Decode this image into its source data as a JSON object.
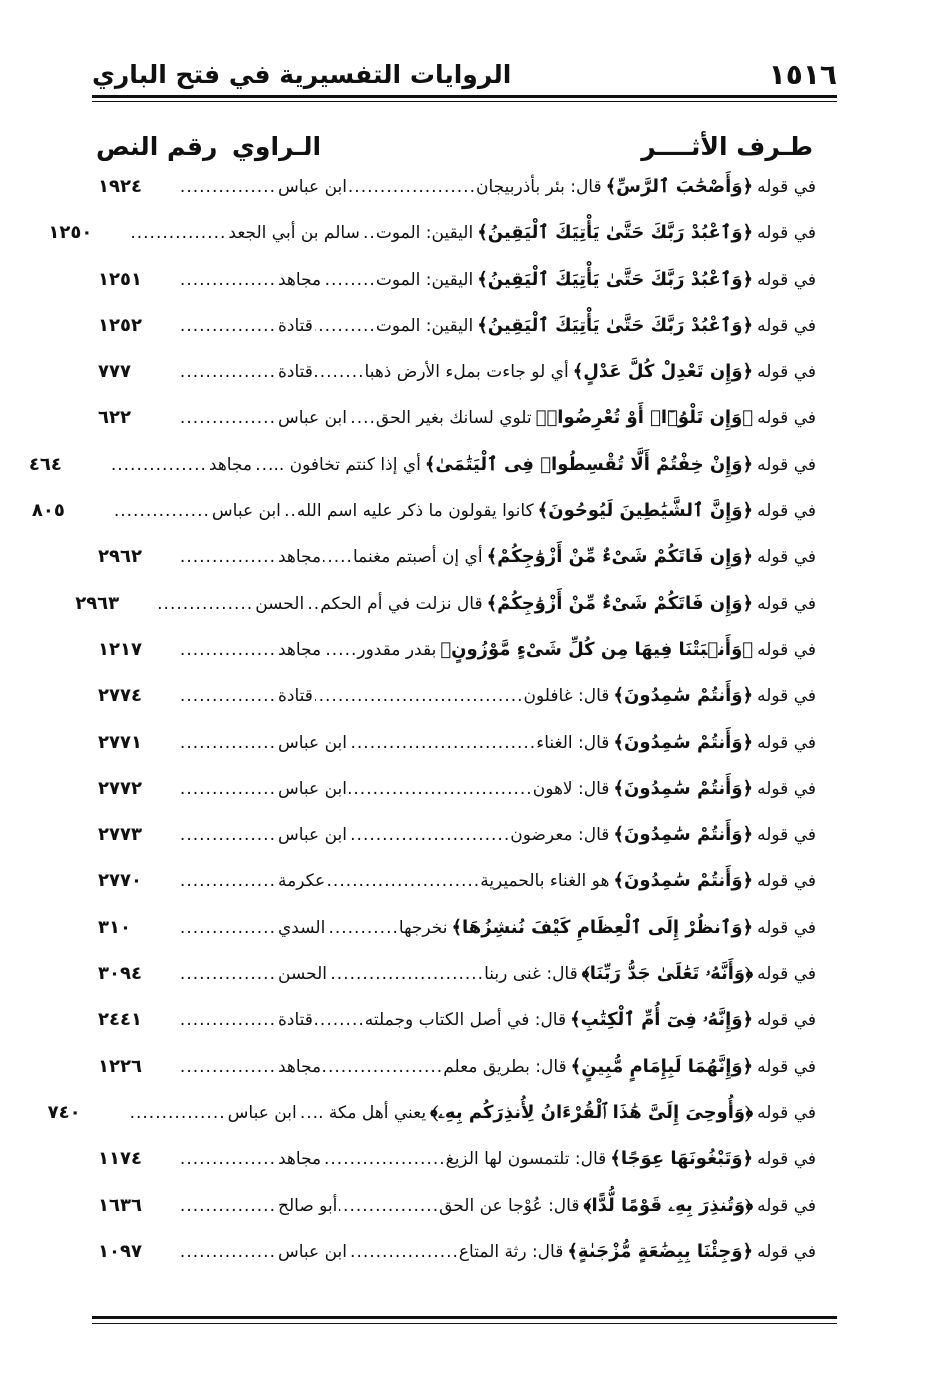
{
  "header": {
    "page_number": "١٥١٦",
    "title": "الروايات التفسيرية في فتح الباري"
  },
  "columns": {
    "athar": "طـرف الأثــــر",
    "narrator": "الـراوي",
    "number": "رقم النص"
  },
  "intro": "في قوله",
  "rows": [
    {
      "verse": "﴿وَأَصْحَٰبَ ٱلرَّسِّ﴾",
      "gloss": "قال: بئر بأذربيجان",
      "narrator": "ابن عباس",
      "number": "١٩٢٤"
    },
    {
      "verse": "﴿وَٱعْبُدْ رَبَّكَ حَتَّىٰ يَأْتِيَكَ ٱلْيَقِينُ﴾",
      "gloss": "اليقين: الموت",
      "narrator": "سالم بن أبي الجعد",
      "number": "١٢٥٠"
    },
    {
      "verse": "﴿وَٱعْبُدْ رَبَّكَ حَتَّىٰ يَأْتِيَكَ ٱلْيَقِينُ﴾",
      "gloss": "اليقين: الموت",
      "narrator": "مجاهد",
      "number": "١٢٥١"
    },
    {
      "verse": "﴿وَٱعْبُدْ رَبَّكَ حَتَّىٰ يَأْتِيَكَ ٱلْيَقِينُ﴾",
      "gloss": "اليقين: الموت",
      "narrator": "قتادة",
      "number": "١٢٥٢"
    },
    {
      "verse": "﴿وَإِن تَعْدِلْ كُلَّ عَدْلٍ﴾",
      "gloss": "أي لو جاءت بملء الأرض ذهبا",
      "narrator": "قتادة",
      "number": "٧٧٧"
    },
    {
      "verse": "﴿وَإِن تَلْوُۥٓا۟ أَوْ تُعْرِضُوا۟﴾",
      "gloss": "تلوي لسانك بغير الحق",
      "narrator": "ابن عباس",
      "number": "٦٢٢"
    },
    {
      "verse": "﴿وَإِنْ خِفْتُمْ أَلَّا تُقْسِطُوا۟ فِى ٱلْيَتَٰمَىٰ﴾",
      "gloss": "أي إذا كنتم تخافون ...",
      "narrator": "مجاهد",
      "number": "٤٦٤"
    },
    {
      "verse": "﴿وَإِنَّ ٱلشَّيَٰطِينَ لَيُوحُونَ﴾",
      "gloss": "كانوا يقولون ما ذكر عليه اسم الله",
      "narrator": "ابن عباس",
      "number": "٨٠٥"
    },
    {
      "verse": "﴿وَإِن فَاتَكُمْ شَىْءٌ مِّنْ أَزْوَٰجِكُمْ﴾",
      "gloss": "أي إن أصبتم مغنما",
      "narrator": "مجاهد",
      "number": "٢٩٦٢"
    },
    {
      "verse": "﴿وَإِن فَاتَكُمْ شَىْءٌ مِّنْ أَزْوَٰجِكُمْ﴾",
      "gloss": "قال نزلت في أم الحكم",
      "narrator": "الحسن",
      "number": "٢٩٦٣"
    },
    {
      "verse": "﴿وَأَنۢبَتْنَا فِيهَا مِن كُلِّ شَىْءٍ مَّوْزُونٍ﴾",
      "gloss": "بقدر مقدور",
      "narrator": "مجاهد",
      "number": "١٢١٧"
    },
    {
      "verse": "﴿وَأَنتُمْ سَٰمِدُونَ﴾",
      "gloss": "قال: غافلون",
      "narrator": "قتادة",
      "number": "٢٧٧٤"
    },
    {
      "verse": "﴿وَأَنتُمْ سَٰمِدُونَ﴾",
      "gloss": "قال: الغناء",
      "narrator": "ابن عباس",
      "number": "٢٧٧١"
    },
    {
      "verse": "﴿وَأَنتُمْ سَٰمِدُونَ﴾",
      "gloss": "قال: لاهون",
      "narrator": "ابن عباس",
      "number": "٢٧٧٢"
    },
    {
      "verse": "﴿وَأَنتُمْ سَٰمِدُونَ﴾",
      "gloss": "قال: معرضون",
      "narrator": "ابن عباس",
      "number": "٢٧٧٣"
    },
    {
      "verse": "﴿وَأَنتُمْ سَٰمِدُونَ﴾",
      "gloss": "هو الغناء بالحميرية",
      "narrator": "عكرمة",
      "number": "٢٧٧٠"
    },
    {
      "verse": "﴿وَٱنظُرْ إِلَى ٱلْعِظَامِ كَيْفَ نُنشِزُهَا﴾",
      "gloss": "نخرجها",
      "narrator": "السدي",
      "number": "٣١٠"
    },
    {
      "verse": "﴿وَأَنَّهُۥ تَعَٰلَىٰ جَدُّ رَبِّنَا﴾",
      "gloss": "قال: غنى ربنا",
      "narrator": "الحسن",
      "number": "٣٠٩٤"
    },
    {
      "verse": "﴿وَإِنَّهُۥ فِىٓ أُمِّ ٱلْكِتَٰبِ﴾",
      "gloss": "قال: في أصل الكتاب وجملته",
      "narrator": "قتادة",
      "number": "٢٤٤١"
    },
    {
      "verse": "﴿وَإِنَّهُمَا لَبِإِمَامٍ مُّبِينٍ﴾",
      "gloss": "قال: بطريق معلم",
      "narrator": "مجاهد",
      "number": "١٢٢٦"
    },
    {
      "verse": "﴿وَأُوحِىَ إِلَىَّ هَٰذَا ٱلْقُرْءَانُ لِأُنذِرَكُم بِهِۦ﴾",
      "gloss": "يعني أهل مكة ..",
      "narrator": "ابن عباس",
      "number": "٧٤٠"
    },
    {
      "verse": "﴿وَتَبْغُونَهَا عِوَجًا﴾",
      "gloss": "قال: تلتمسون لها الزيغ",
      "narrator": "مجاهد",
      "number": "١١٧٤"
    },
    {
      "verse": "﴿وَتُنذِرَ بِهِۦ قَوْمًا لُّدًّا﴾",
      "gloss": "قال: عُوْجا عن الحق",
      "narrator": "أبو صالح",
      "number": "١٦٣٦"
    },
    {
      "verse": "﴿وَجِئْنَا بِبِضَٰعَةٍ مُّزْجَىٰةٍ﴾",
      "gloss": "قال: رثة المتاع",
      "narrator": "ابن عباس",
      "number": "١٠٩٧"
    }
  ]
}
